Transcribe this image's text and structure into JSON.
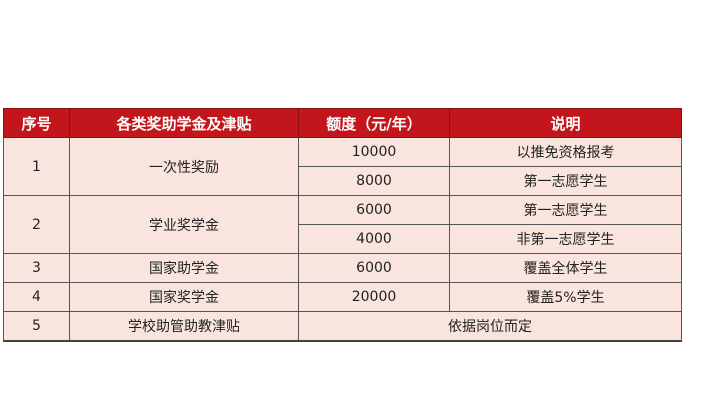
{
  "table": {
    "headers": [
      "序号",
      "各类奖助学金及津贴",
      "额度（元/年）",
      "说明"
    ],
    "rows": [
      {
        "no": "1",
        "name": "一次性奖励",
        "items": [
          {
            "amount": "10000",
            "note": "以推免资格报考"
          },
          {
            "amount": "8000",
            "note": "第一志愿学生"
          }
        ]
      },
      {
        "no": "2",
        "name": "学业奖学金",
        "items": [
          {
            "amount": "6000",
            "note": "第一志愿学生"
          },
          {
            "amount": "4000",
            "note": "非第一志愿学生"
          }
        ]
      },
      {
        "no": "3",
        "name": "国家助学金",
        "items": [
          {
            "amount": "6000",
            "note": "覆盖全体学生"
          }
        ]
      },
      {
        "no": "4",
        "name": "国家奖学金",
        "items": [
          {
            "amount": "20000",
            "note": "覆盖5%学生"
          }
        ]
      },
      {
        "no": "5",
        "name": "学校助管助教津贴",
        "merged_note": "依据岗位而定"
      }
    ],
    "colors": {
      "header_bg": "#c3161c",
      "row_bg": "#f9e5dd"
    }
  }
}
